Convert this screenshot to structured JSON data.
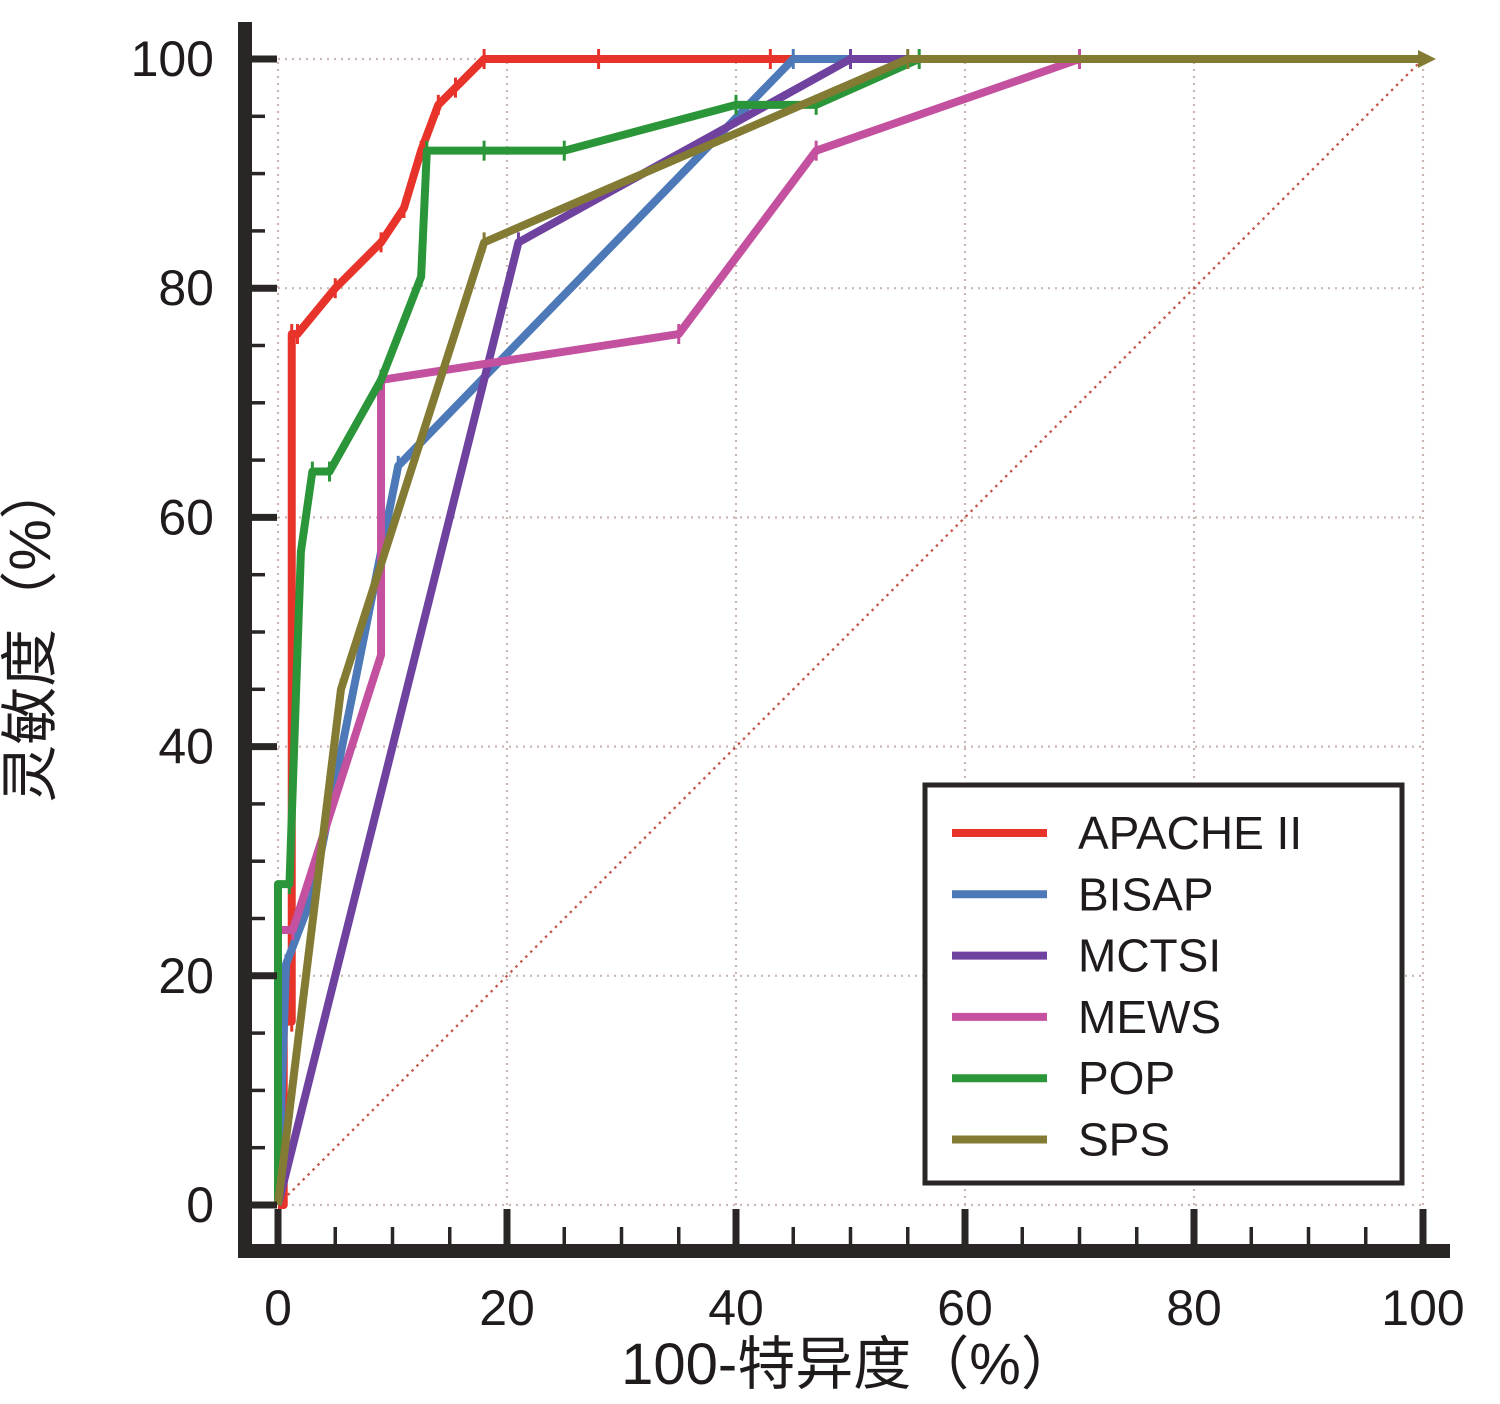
{
  "chart_data": {
    "type": "line",
    "title": "",
    "xlabel": "100-特异度（%）",
    "ylabel": "灵敏度（%）",
    "xlim": [
      0,
      100
    ],
    "ylim": [
      0,
      100
    ],
    "x_ticks": [
      0,
      20,
      40,
      60,
      80,
      100
    ],
    "y_ticks": [
      0,
      20,
      40,
      60,
      80,
      100
    ],
    "minor_tick_step": 5,
    "grid": "dotted",
    "legend_position": "lower-right",
    "reference_diagonal": {
      "from": [
        0,
        0
      ],
      "to": [
        100,
        100
      ],
      "style": "dotted",
      "color": "#c4544a"
    },
    "series": [
      {
        "name": "APACHE II",
        "color": "#e8332a",
        "points": [
          [
            0,
            0
          ],
          [
            0.5,
            0
          ],
          [
            0.5,
            16
          ],
          [
            1.2,
            16
          ],
          [
            1.2,
            68
          ],
          [
            1.2,
            76
          ],
          [
            1.7,
            76
          ],
          [
            5,
            80
          ],
          [
            9,
            84
          ],
          [
            11,
            87
          ],
          [
            12.5,
            92
          ],
          [
            14,
            96
          ],
          [
            15.5,
            97.5
          ],
          [
            18,
            100
          ],
          [
            28,
            100
          ],
          [
            43,
            100
          ],
          [
            100,
            100
          ]
        ]
      },
      {
        "name": "BISAP",
        "color": "#4d79b8",
        "points": [
          [
            0,
            0
          ],
          [
            0.7,
            21
          ],
          [
            3,
            27
          ],
          [
            10.5,
            64.5
          ],
          [
            45,
            100
          ],
          [
            100,
            100
          ]
        ]
      },
      {
        "name": "MCTSI",
        "color": "#6f42a0",
        "points": [
          [
            0,
            0
          ],
          [
            2,
            8
          ],
          [
            21,
            84
          ],
          [
            50,
            100
          ],
          [
            100,
            100
          ]
        ]
      },
      {
        "name": "MEWS",
        "color": "#c4519f",
        "points": [
          [
            0,
            0
          ],
          [
            0,
            24
          ],
          [
            1.3,
            24
          ],
          [
            9,
            48
          ],
          [
            9,
            72
          ],
          [
            35,
            76
          ],
          [
            47,
            92
          ],
          [
            70,
            100
          ],
          [
            100,
            100
          ]
        ]
      },
      {
        "name": "POP",
        "color": "#2b9639",
        "points": [
          [
            0,
            0
          ],
          [
            0,
            28
          ],
          [
            1,
            28
          ],
          [
            2,
            57
          ],
          [
            3,
            64
          ],
          [
            4.5,
            64
          ],
          [
            9,
            72
          ],
          [
            12.5,
            81
          ],
          [
            13,
            92
          ],
          [
            18,
            92
          ],
          [
            25,
            92
          ],
          [
            40,
            96
          ],
          [
            47,
            96
          ],
          [
            56,
            100
          ],
          [
            100,
            100
          ]
        ]
      },
      {
        "name": "SPS",
        "color": "#837b33",
        "points": [
          [
            0,
            0
          ],
          [
            5.5,
            45
          ],
          [
            18,
            84
          ],
          [
            55,
            100
          ],
          [
            100,
            100
          ]
        ]
      }
    ]
  },
  "style_colors": {
    "axis": "#2b2626",
    "grid": "#cbb7b2",
    "text": "#1f1b1b",
    "background": "#ffffff"
  }
}
